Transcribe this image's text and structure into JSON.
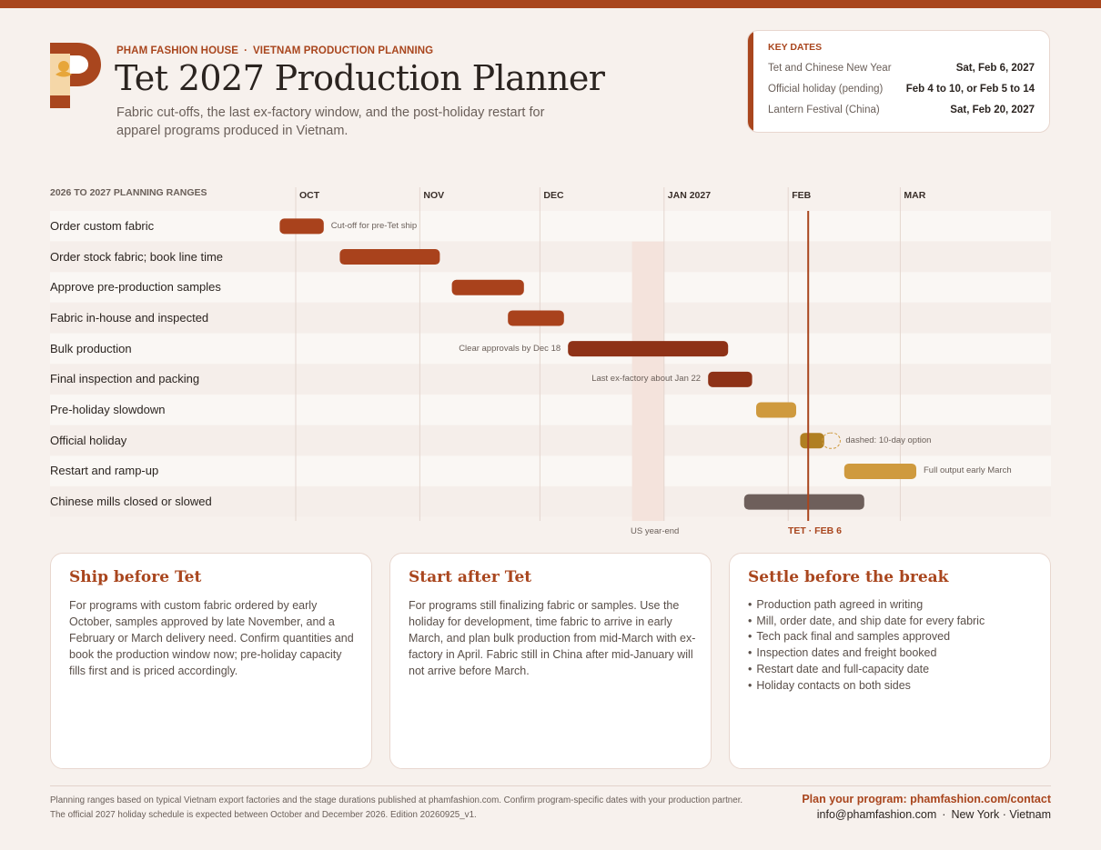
{
  "header": {
    "brand": "PHAM FASHION HOUSE",
    "eyebrow_sep": "·",
    "section": "VIETNAM PRODUCTION PLANNING",
    "title": "Tet 2027 Production Planner",
    "subtitle": "Fabric cut-offs, the last ex-factory window, and the post-holiday restart for apparel programs produced in Vietnam."
  },
  "key_dates": {
    "title": "KEY DATES",
    "items": [
      {
        "label": "Tet and Chinese New Year",
        "value": "Sat, Feb 6, 2027"
      },
      {
        "label": "Official holiday (pending)",
        "value": "Feb 4 to 10, or Feb 5 to 14"
      },
      {
        "label": "Lantern Festival (China)",
        "value": "Sat, Feb 20, 2027"
      }
    ]
  },
  "chart_data": {
    "type": "gantt",
    "section_label": "2026 TO 2027 PLANNING RANGES",
    "months": [
      {
        "label": "OCT",
        "start": "2026-10-01"
      },
      {
        "label": "NOV",
        "start": "2026-11-01"
      },
      {
        "label": "DEC",
        "start": "2026-12-01"
      },
      {
        "label": "JAN 2027",
        "start": "2027-01-01"
      },
      {
        "label": "FEB",
        "start": "2027-02-01"
      },
      {
        "label": "MAR",
        "start": "2027-03-01"
      }
    ],
    "rows": [
      {
        "label": "Order custom fabric",
        "start": "2026-09-27",
        "end": "2026-10-08",
        "color": "#a9421c",
        "note": "Cut-off for pre-Tet ship",
        "note_side": "right"
      },
      {
        "label": "Order stock fabric; book line time",
        "start": "2026-10-12",
        "end": "2026-11-06",
        "color": "#a9421c"
      },
      {
        "label": "Approve pre-production samples",
        "start": "2026-11-09",
        "end": "2026-11-27",
        "color": "#a9421c"
      },
      {
        "label": "Fabric in-house and inspected",
        "start": "2026-11-23",
        "end": "2026-12-07",
        "color": "#a9421c"
      },
      {
        "label": "Bulk production",
        "start": "2026-12-08",
        "end": "2027-01-17",
        "color": "#8e3217",
        "note": "Clear approvals by Dec 18",
        "note_side": "left"
      },
      {
        "label": "Final inspection and packing",
        "start": "2027-01-12",
        "end": "2027-01-23",
        "color": "#8e3217",
        "note": "Last ex-factory about Jan 22",
        "note_side": "left"
      },
      {
        "label": "Pre-holiday slowdown",
        "start": "2027-01-24",
        "end": "2027-02-03",
        "color": "#cf9a3e"
      },
      {
        "label": "Official holiday",
        "start": "2027-02-04",
        "end": "2027-02-10",
        "color": "#b07f22",
        "dashed_end": "2027-02-14",
        "note": "dashed: 10-day option",
        "note_side": "right"
      },
      {
        "label": "Restart and ramp-up",
        "start": "2027-02-15",
        "end": "2027-03-05",
        "color": "#cf9a3e",
        "note": "Full output early March",
        "note_side": "right"
      },
      {
        "label": "Chinese mills closed or slowed",
        "start": "2027-01-21",
        "end": "2027-02-20",
        "color": "#6e5f5b"
      }
    ],
    "markers": [
      {
        "label": "TET · FEB 6",
        "date": "2027-02-06",
        "color": "#a9461e"
      }
    ],
    "bands": [
      {
        "label": "US year-end",
        "start": "2026-12-24",
        "end": "2027-01-01"
      }
    ]
  },
  "cards": [
    {
      "title": "Ship before Tet",
      "body": "For programs with custom fabric ordered by early October, samples approved by late November, and a February or March delivery need. Confirm quantities and book the production window now; pre-holiday capacity fills first and is priced accordingly."
    },
    {
      "title": "Start after Tet",
      "body": "For programs still finalizing fabric or samples. Use the holiday for development, time fabric to arrive in early March, and plan bulk production from mid-March with ex-factory in April. Fabric still in China after mid-January will not arrive before March."
    },
    {
      "title": "Settle before the break",
      "items": [
        "Production path agreed in writing",
        "Mill, order date, and ship date for every fabric",
        "Tech pack final and samples approved",
        "Inspection dates and freight booked",
        "Restart date and full-capacity date",
        "Holiday contacts on both sides"
      ]
    }
  ],
  "footer": {
    "note_line1": "Planning ranges based on typical Vietnam export factories and the stage durations published at phamfashion.com. Confirm program-specific dates with your production partner.",
    "note_line2": "The official 2027 holiday schedule is expected between October and December 2026. Edition 20260925_v1.",
    "cta": "Plan your program: phamfashion.com/contact",
    "email": "info@phamfashion.com",
    "sep": "·",
    "locations": "New York · Vietnam"
  },
  "colors": {
    "accent": "#a9461e",
    "background": "#f7f1ed",
    "band": "#f4e3dc"
  }
}
